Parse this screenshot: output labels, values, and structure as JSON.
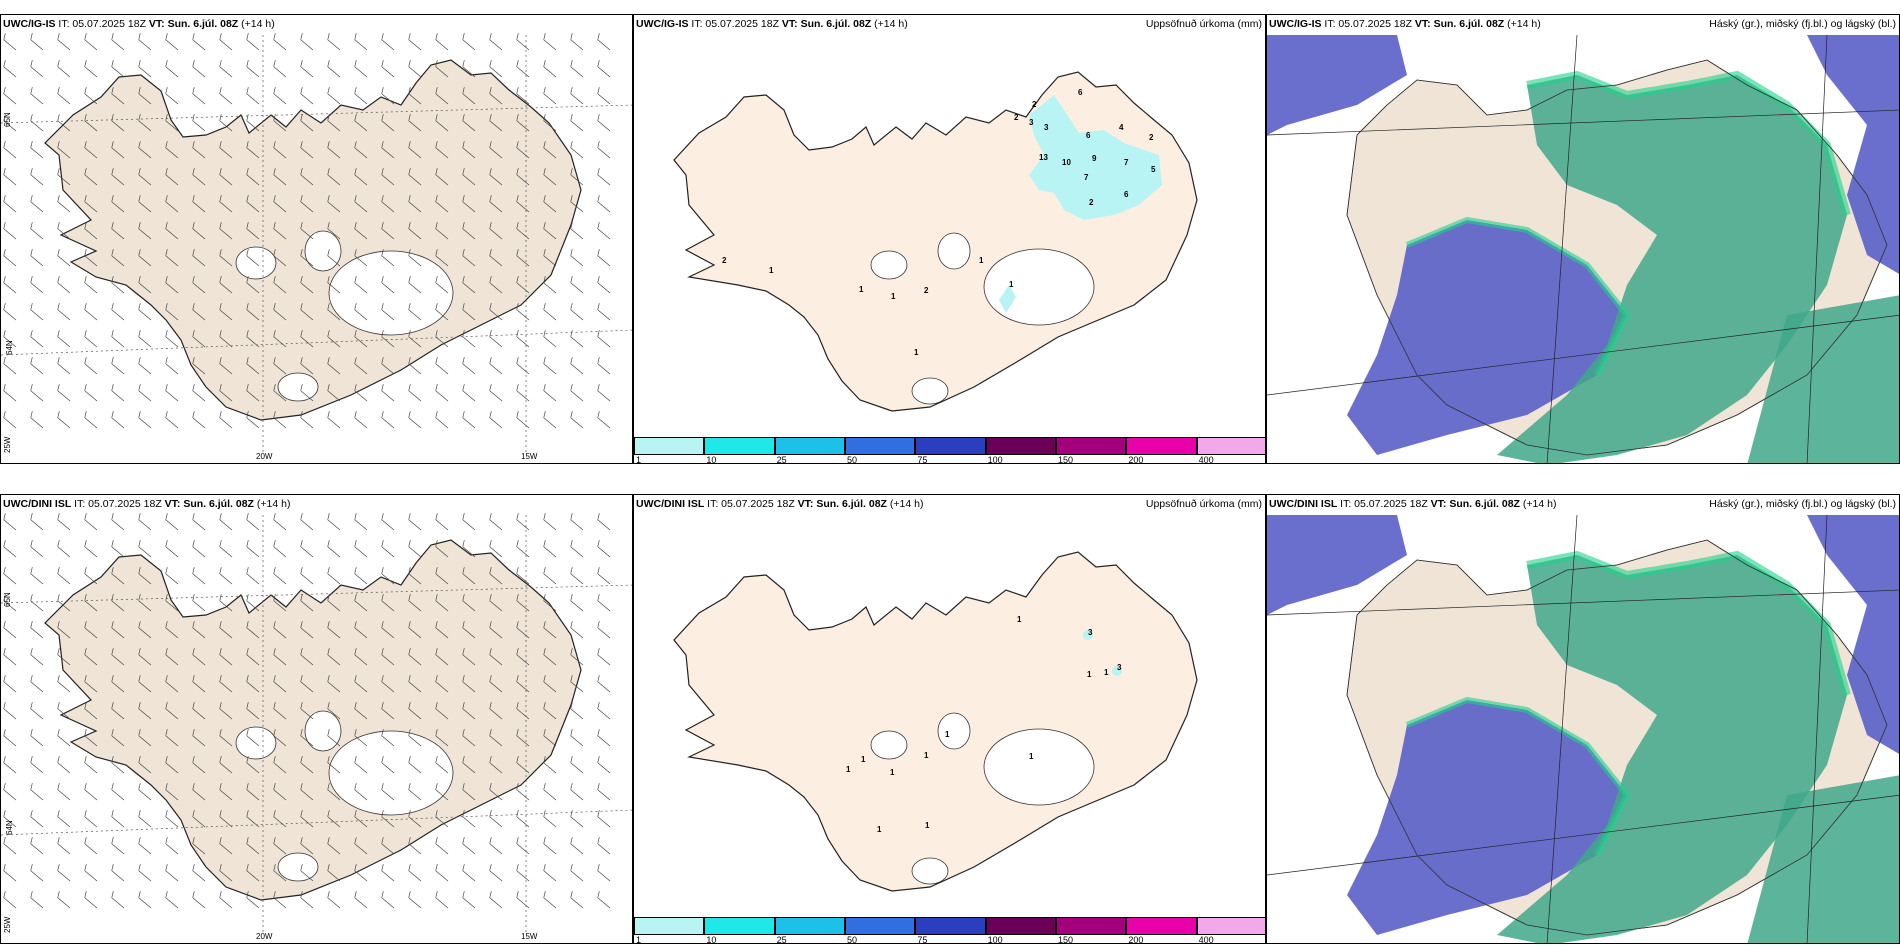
{
  "rows": [
    {
      "wind": {
        "model": "UWC/IG-IS",
        "run": "IT: 05.07.2025 18Z",
        "valid_label": "VT:",
        "valid": "Sun. 6.júl. 08Z",
        "lead": "(+14 h)"
      },
      "precip": {
        "model": "UWC/IG-IS",
        "run": "IT: 05.07.2025 18Z",
        "valid_label": "VT:",
        "valid": "Sun. 6.júl. 08Z",
        "lead": "(+14 h)",
        "right_title": "Uppsöfnuð úrkoma (mm)"
      },
      "cloud": {
        "model": "UWC/IG-IS",
        "run": "IT: 05.07.2025 18Z",
        "valid_label": "VT:",
        "valid": "Sun. 6.júl. 08Z",
        "lead": "(+14 h)",
        "right_title": "Háský (gr.), miðský (fj.bl.) og lágský (bl.)"
      },
      "precip_values": [
        "6",
        "2",
        "2",
        "3",
        "3",
        "6",
        "4",
        "2",
        "13",
        "10",
        "9",
        "7",
        "5",
        "7",
        "6",
        "2",
        "1",
        "2",
        "1",
        "1",
        "2",
        "1",
        "1",
        "1"
      ]
    },
    {
      "wind": {
        "model": "UWC/DINI ISL",
        "run": "IT: 05.07.2025 18Z",
        "valid_label": "VT:",
        "valid": "Sun. 6.júl. 08Z",
        "lead": "(+14 h)"
      },
      "precip": {
        "model": "UWC/DINI ISL",
        "run": "IT: 05.07.2025 18Z",
        "valid_label": "VT:",
        "valid": "Sun. 6.júl. 08Z",
        "lead": "(+14 h)",
        "right_title": "Uppsöfnuð úrkoma (mm)"
      },
      "cloud": {
        "model": "UWC/DINI ISL",
        "run": "IT: 05.07.2025 18Z",
        "valid_label": "VT:",
        "valid": "Sun. 6.júl. 08Z",
        "lead": "(+14 h)",
        "right_title": "Háský (gr.), miðský (fj.bl.) og lágský (bl.)"
      },
      "precip_values": [
        "1",
        "3",
        "3",
        "1",
        "1",
        "1",
        "1",
        "1",
        "1",
        "1",
        "1",
        "1",
        "1"
      ]
    }
  ],
  "axes": {
    "lon_left": "20W",
    "lon_right": "15W",
    "lat_top": "65N",
    "lat_bottom": "64N",
    "lat_corner": "25W"
  },
  "colorbar": {
    "labels": [
      "1",
      "10",
      "25",
      "50",
      "75",
      "100",
      "150",
      "200",
      "400"
    ],
    "colors": [
      "#b8f4f4",
      "#1fe8e8",
      "#1cc0e8",
      "#2f6fe0",
      "#2a3fc0",
      "#6a0058",
      "#a4007e",
      "#e800a8",
      "#f4a8ec"
    ]
  },
  "colors": {
    "land": "#efe4d6",
    "precip_land": "#fcefe2",
    "ice": "#ffffff",
    "high_cloud": "#5a5fc9",
    "mid_cloud": "#3fa889",
    "low_cloud": "#1fd08a"
  }
}
